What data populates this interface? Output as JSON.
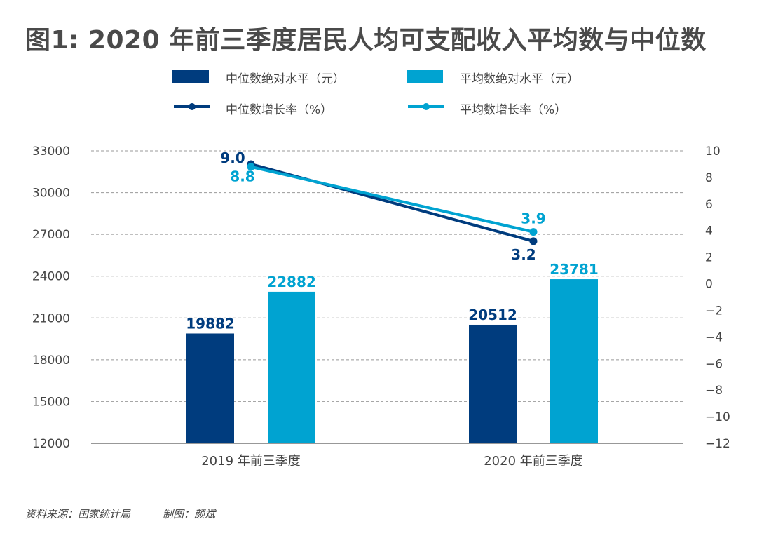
{
  "title": "图1: 2020 年前三季度居民人均可支配收入平均数与中位数",
  "source": "资料来源：国家统计局",
  "credit": "制图：颜斌",
  "colors": {
    "median": "#003c7e",
    "mean": "#00a3d1",
    "grid": "#999999",
    "axis": "#444444"
  },
  "chart_data": {
    "type": "bar",
    "categories": [
      "2019 年前三季度",
      "2020 年前三季度"
    ],
    "series": [
      {
        "name": "中位数绝对水平（元）",
        "type": "bar",
        "axis": "left",
        "color": "#003c7e",
        "values": [
          19882,
          20512
        ]
      },
      {
        "name": "平均数绝对水平（元）",
        "type": "bar",
        "axis": "left",
        "color": "#00a3d1",
        "values": [
          22882,
          23781
        ]
      },
      {
        "name": "中位数增长率（%）",
        "type": "line",
        "axis": "right",
        "color": "#003c7e",
        "values": [
          9.0,
          3.2
        ],
        "labels": [
          "9.0",
          "3.2"
        ]
      },
      {
        "name": "平均数增长率（%）",
        "type": "line",
        "axis": "right",
        "color": "#00a3d1",
        "values": [
          8.8,
          3.9
        ],
        "labels": [
          "8.8",
          "3.9"
        ]
      }
    ],
    "ylim_left": [
      12000,
      33000
    ],
    "yticks_left": [
      "12000",
      "15000",
      "18000",
      "21000",
      "24000",
      "27000",
      "30000",
      "33000"
    ],
    "ylim_right": [
      -12,
      10
    ],
    "yticks_right": [
      "-12",
      "-10",
      "-8",
      "-6",
      "-4",
      "-2",
      "0",
      "2",
      "4",
      "6",
      "8",
      "10"
    ],
    "grid": true,
    "legend_position": "top"
  }
}
